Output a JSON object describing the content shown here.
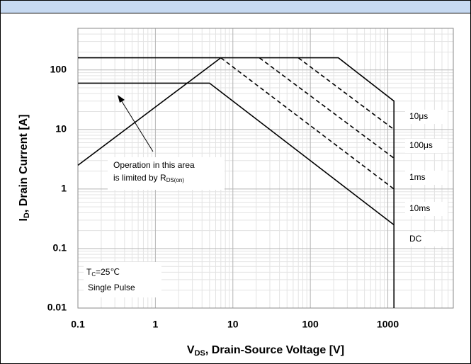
{
  "chart_data": {
    "type": "line",
    "xlog": true,
    "ylog": true,
    "grid": true,
    "minor_grid": true,
    "xlim": [
      0.1,
      7000
    ],
    "ylim": [
      0.01,
      500
    ],
    "xticks": [
      0.1,
      1,
      10,
      100,
      1000
    ],
    "yticks": [
      0.01,
      0.1,
      1,
      10,
      100
    ],
    "x_label": {
      "main": "V",
      "sub": "DS",
      "rest": ", Drain-Source Voltage [V]"
    },
    "y_label": {
      "main": "I",
      "sub": "D",
      "rest": ", Drain Current [A]"
    },
    "annotation": {
      "line1": "Operation in this area",
      "line2": "is limited by R",
      "sub": "DS(on)"
    },
    "condition": {
      "main": "T",
      "sub": "C",
      "rest": "=25℃",
      "line2": "Single Pulse"
    },
    "series": [
      {
        "x": [
          0.1,
          7
        ],
        "values": [
          2.5,
          160
        ],
        "color": "#000000",
        "dashed": false
      },
      {
        "name": "10μs",
        "x": [
          0.1,
          230,
          1200,
          1200
        ],
        "values": [
          160,
          160,
          30,
          0.01
        ],
        "color": "#000000",
        "dashed": false
      },
      {
        "name": "100μs",
        "x": [
          70,
          1200
        ],
        "values": [
          160,
          10
        ],
        "color": "#000000",
        "dashed": true
      },
      {
        "name": "1ms",
        "x": [
          22,
          1200
        ],
        "values": [
          160,
          3.3
        ],
        "color": "#000000",
        "dashed": true
      },
      {
        "name": "10ms",
        "x": [
          7,
          1200
        ],
        "values": [
          160,
          1
        ],
        "color": "#000000",
        "dashed": true
      },
      {
        "name": "DC",
        "x": [
          0.1,
          5,
          1200
        ],
        "values": [
          60,
          60,
          0.25
        ],
        "color": "#000000",
        "dashed": false
      }
    ]
  }
}
